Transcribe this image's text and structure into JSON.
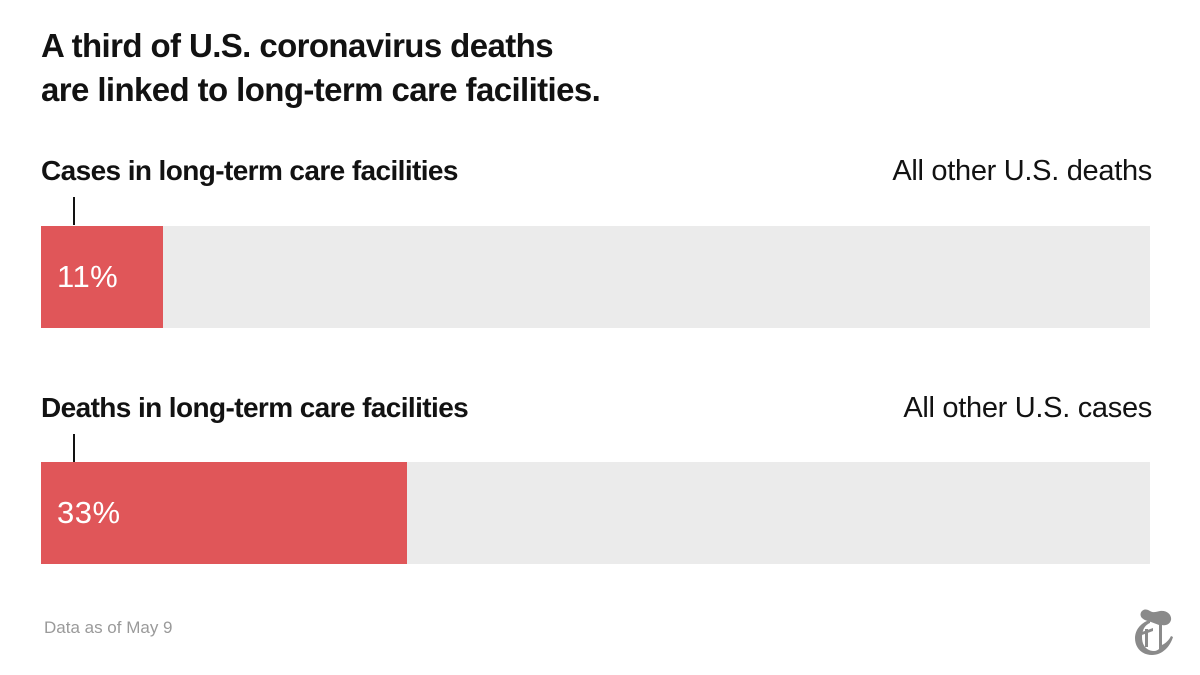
{
  "chart_data": {
    "type": "bar",
    "orientation": "horizontal",
    "stacked_to_100": true,
    "title_lines": [
      "A third of U.S. coronavirus deaths",
      "are linked to long-term care facilities."
    ],
    "xlim": [
      0,
      100
    ],
    "rows": [
      {
        "label": "Cases in long-term care facilities",
        "other_label": "All other U.S. deaths",
        "value": 11,
        "value_label": "11%"
      },
      {
        "label": "Deaths in long-term care facilities",
        "other_label": "All other U.S. cases",
        "value": 33,
        "value_label": "33%"
      }
    ],
    "colors": {
      "highlight": "#e05659",
      "remainder": "#ebebeb"
    }
  },
  "footer": {
    "source": "Data as of May 9",
    "logo_icon": "nyt-t-logo-icon"
  }
}
